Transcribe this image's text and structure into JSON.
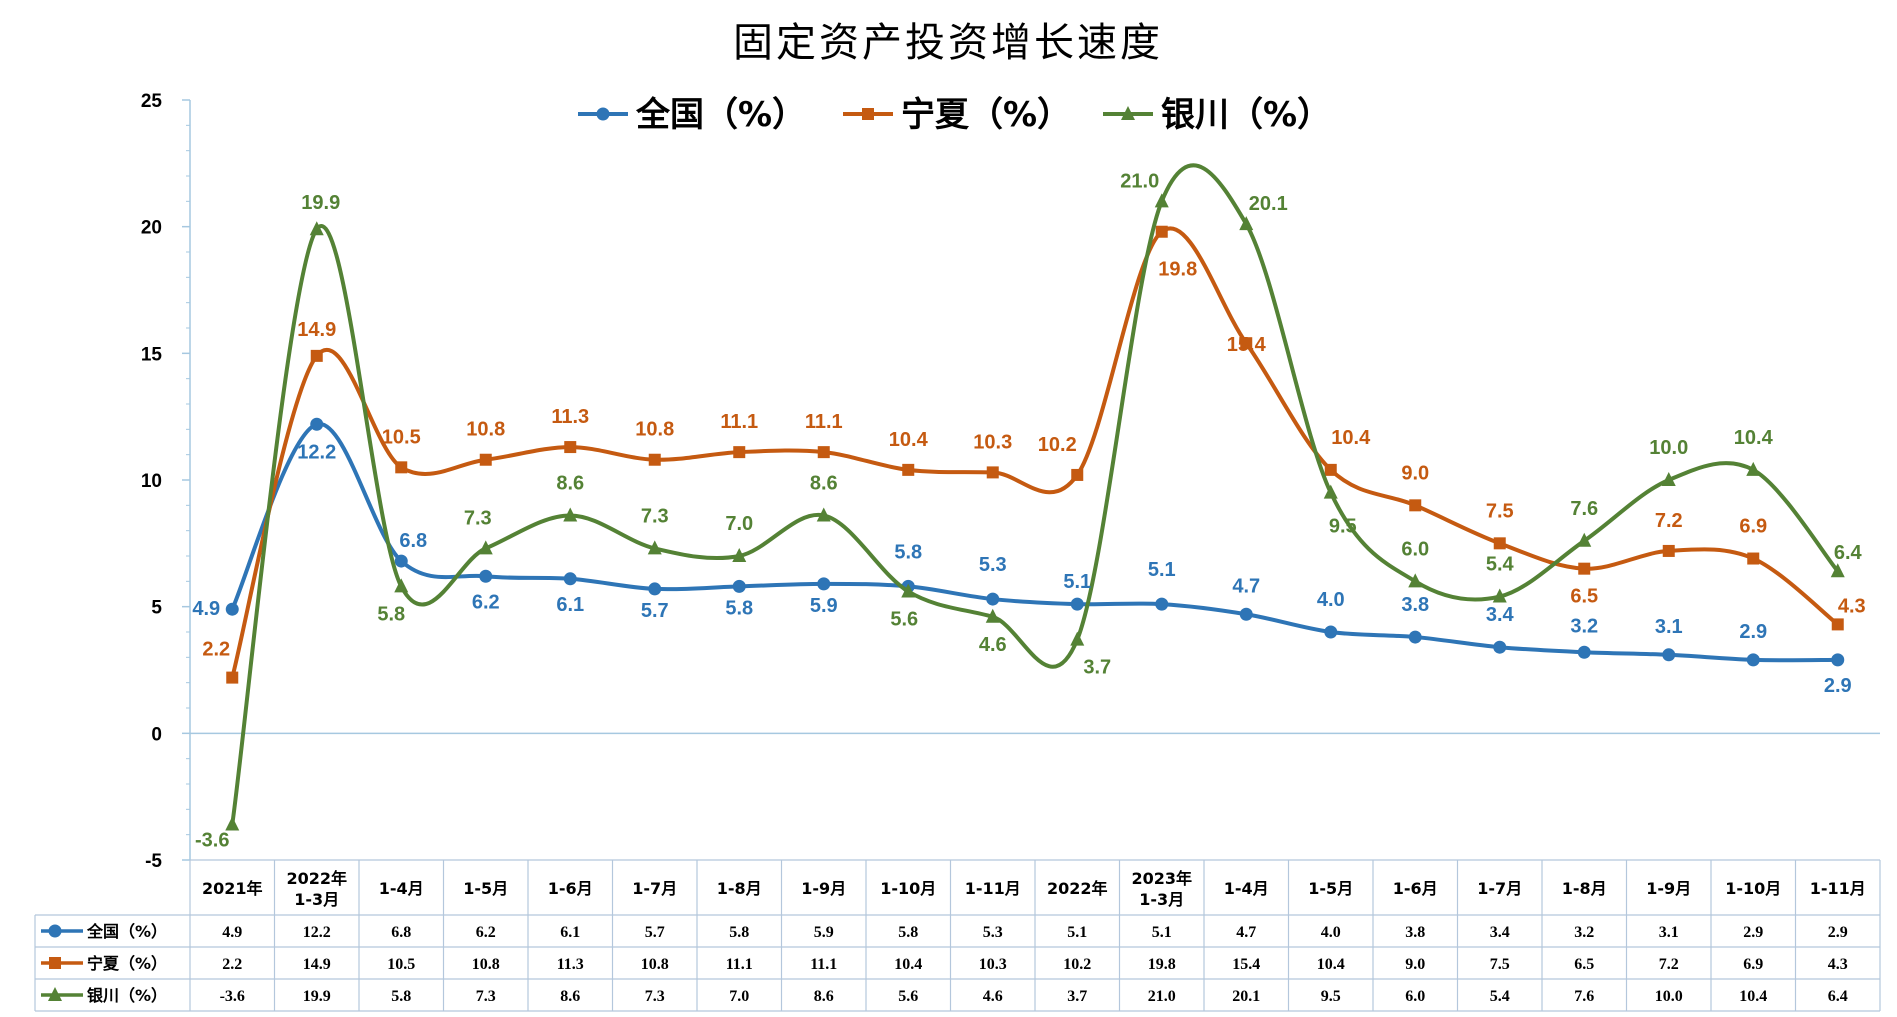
{
  "chart_data": {
    "type": "line",
    "title": "固定资产投资增长速度",
    "categories": [
      "2021年",
      "2022年\n1-3月",
      "1-4月",
      "1-5月",
      "1-6月",
      "1-7月",
      "1-8月",
      "1-9月",
      "1-10月",
      "1-11月",
      "2022年",
      "2023年\n1-3月",
      "1-4月",
      "1-5月",
      "1-6月",
      "1-7月",
      "1-8月",
      "1-9月",
      "1-10月",
      "1-11月"
    ],
    "series": [
      {
        "name": "全国（%）",
        "color": "#2E75B6",
        "marker": "circle",
        "values": [
          4.9,
          12.2,
          6.8,
          6.2,
          6.1,
          5.7,
          5.8,
          5.9,
          5.8,
          5.3,
          5.1,
          5.1,
          4.7,
          4.0,
          3.8,
          3.4,
          3.2,
          3.1,
          2.9,
          2.9
        ]
      },
      {
        "name": "宁夏（%）",
        "color": "#C55A11",
        "marker": "square",
        "values": [
          2.2,
          14.9,
          10.5,
          10.8,
          11.3,
          10.8,
          11.1,
          11.1,
          10.4,
          10.3,
          10.2,
          19.8,
          15.4,
          10.4,
          9.0,
          7.5,
          6.5,
          7.2,
          6.9,
          4.3
        ]
      },
      {
        "name": "银川（%）",
        "color": "#548235",
        "marker": "triangle",
        "values": [
          -3.6,
          19.9,
          5.8,
          7.3,
          8.6,
          7.3,
          7.0,
          8.6,
          5.6,
          4.6,
          3.7,
          21.0,
          20.1,
          9.5,
          6.0,
          5.4,
          7.6,
          10.0,
          10.4,
          6.4
        ]
      }
    ],
    "ylim": [
      -5,
      25
    ],
    "yticks": [
      -5,
      0,
      5,
      10,
      15,
      20,
      25
    ],
    "legend": "top",
    "grid": false,
    "data_table": true
  }
}
